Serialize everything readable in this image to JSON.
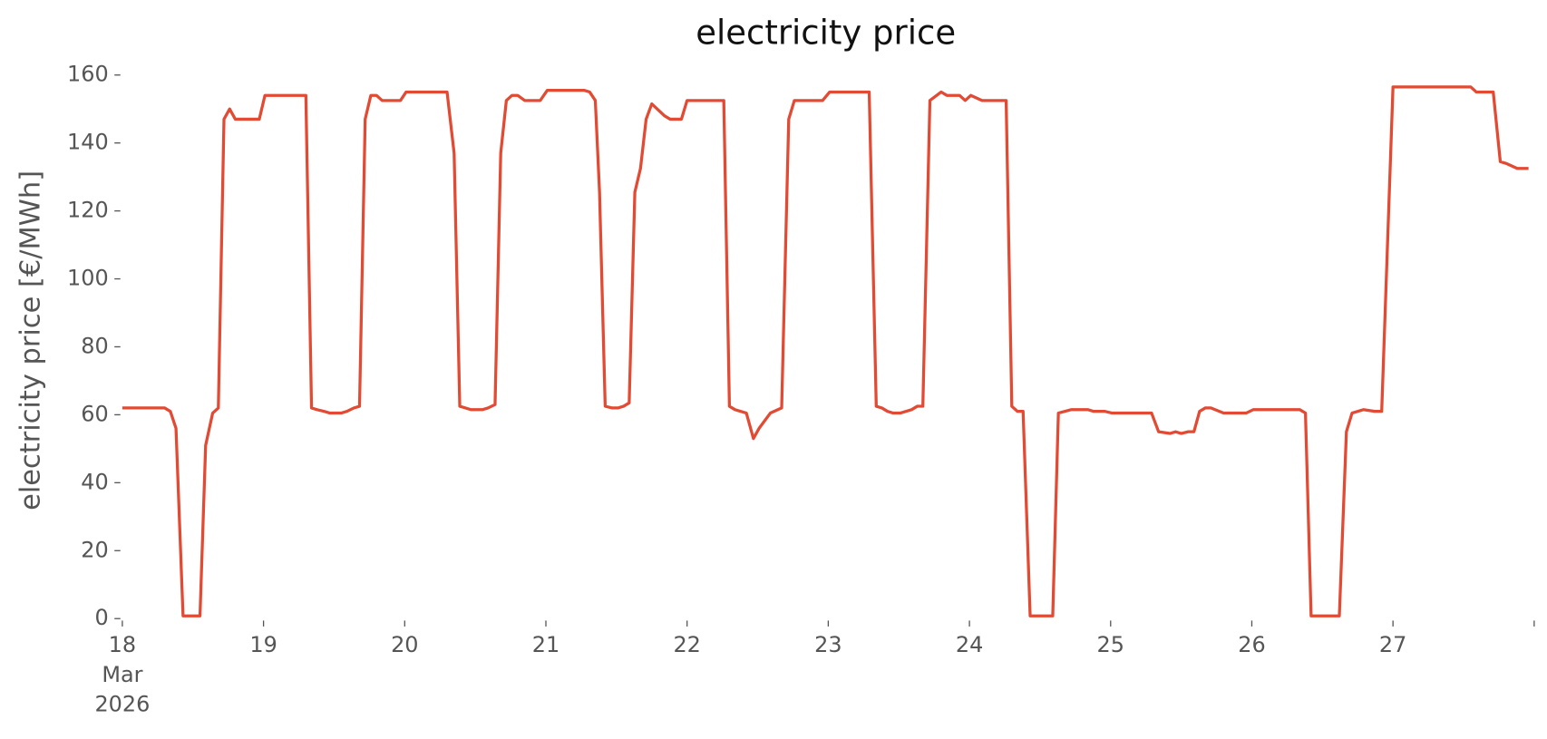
{
  "chart_data": {
    "type": "line",
    "title": "electricity price",
    "ylabel": "electricity price [€/MWh]",
    "xlim": [
      18,
      28
    ],
    "ylim": [
      0,
      160
    ],
    "xticks": [
      {
        "value": 18,
        "label": "18\nMar\n2026"
      },
      19,
      20,
      21,
      22,
      23,
      24,
      25,
      26,
      27,
      {
        "value": 28,
        "label": null
      }
    ],
    "yticks": [
      0,
      20,
      40,
      60,
      80,
      100,
      120,
      140,
      160
    ],
    "grid": false,
    "series": [
      {
        "name": "electricity price",
        "color": "#e24a33",
        "x": [
          18.0,
          18.3,
          18.34,
          18.38,
          18.43,
          18.55,
          18.59,
          18.64,
          18.68,
          18.72,
          18.76,
          18.8,
          18.97,
          19.01,
          19.3,
          19.34,
          19.38,
          19.43,
          19.47,
          19.55,
          19.59,
          19.64,
          19.68,
          19.72,
          19.76,
          19.8,
          19.84,
          19.97,
          20.01,
          20.3,
          20.35,
          20.39,
          20.47,
          20.55,
          20.59,
          20.64,
          20.68,
          20.72,
          20.76,
          20.8,
          20.85,
          20.96,
          21.01,
          21.27,
          21.31,
          21.35,
          21.38,
          21.42,
          21.47,
          21.51,
          21.55,
          21.59,
          21.63,
          21.67,
          21.71,
          21.75,
          21.84,
          21.88,
          21.96,
          22.0,
          22.26,
          22.3,
          22.34,
          22.42,
          22.47,
          22.51,
          22.59,
          22.67,
          22.72,
          22.76,
          22.96,
          23.01,
          23.29,
          23.34,
          23.38,
          23.42,
          23.46,
          23.51,
          23.59,
          23.63,
          23.67,
          23.72,
          23.8,
          23.84,
          23.93,
          23.97,
          24.01,
          24.09,
          24.26,
          24.3,
          24.34,
          24.38,
          24.43,
          24.59,
          24.63,
          24.72,
          24.84,
          24.88,
          24.96,
          25.01,
          25.29,
          25.34,
          25.42,
          25.46,
          25.5,
          25.55,
          25.59,
          25.63,
          25.67,
          25.71,
          25.8,
          25.96,
          26.01,
          26.34,
          26.38,
          26.42,
          26.62,
          26.67,
          26.71,
          26.79,
          26.87,
          26.92,
          27.0,
          27.55,
          27.59,
          27.71,
          27.76,
          27.8,
          27.88,
          27.96
        ],
        "values": [
          62,
          62,
          61,
          56,
          0.8,
          0.8,
          51,
          60.5,
          62,
          147,
          150,
          147,
          147,
          154,
          154,
          62,
          61.5,
          61,
          60.5,
          60.5,
          61,
          62,
          62.5,
          147,
          154,
          154,
          152.5,
          152.5,
          155,
          155,
          137,
          62.5,
          61.5,
          61.5,
          62,
          63,
          137,
          152.5,
          154,
          154,
          152.5,
          152.5,
          155.5,
          155.5,
          155,
          152.5,
          125.5,
          62.5,
          62,
          62,
          62.5,
          63.5,
          125.5,
          132.5,
          147,
          151.5,
          148,
          147,
          147,
          152.5,
          152.5,
          62.5,
          61.5,
          60.5,
          53,
          56,
          60.5,
          62,
          147,
          152.5,
          152.5,
          155,
          155,
          62.5,
          62,
          61,
          60.5,
          60.5,
          61.5,
          62.5,
          62.5,
          152.5,
          155,
          154,
          154,
          152.5,
          154,
          152.5,
          152.5,
          62.5,
          61,
          61,
          0.8,
          0.8,
          60.5,
          61.5,
          61.5,
          61,
          61,
          60.5,
          60.5,
          55,
          54.5,
          55,
          54.5,
          55,
          55,
          61,
          62,
          62,
          60.5,
          60.5,
          61.5,
          61.5,
          60.5,
          0.8,
          0.8,
          55,
          60.5,
          61.5,
          61,
          61,
          156.5,
          156.5,
          155,
          155,
          134.5,
          134,
          132.5,
          132.5
        ]
      }
    ]
  }
}
